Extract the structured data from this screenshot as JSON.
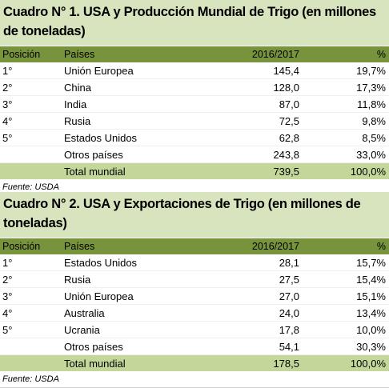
{
  "table1": {
    "title": "Cuadro N° 1. USA y Producción Mundial de Trigo (en millones de toneladas)",
    "headers": [
      "Posición",
      "Países",
      "2016/2017",
      "%"
    ],
    "rows": [
      [
        "1°",
        "Unión Europea",
        "145,4",
        "19,7%"
      ],
      [
        "2°",
        "China",
        "128,0",
        "17,3%"
      ],
      [
        "3°",
        "India",
        "87,0",
        "11,8%"
      ],
      [
        "4°",
        "Rusia",
        "72,5",
        "9,8%"
      ],
      [
        "5°",
        "Estados Unidos",
        "62,8",
        "8,5%"
      ],
      [
        "",
        "Otros países",
        "243,8",
        "33,0%"
      ]
    ],
    "total": [
      "",
      "Total mundial",
      "739,5",
      "100,0%"
    ],
    "source": "Fuente: USDA"
  },
  "table2": {
    "title": "Cuadro N° 2. USA y Exportaciones de Trigo (en millones de toneladas)",
    "headers": [
      "Posición",
      "Países",
      "2016/2017",
      "%"
    ],
    "rows": [
      [
        "1°",
        "Estados Unidos",
        "28,1",
        "15,7%"
      ],
      [
        "2°",
        "Rusia",
        "27,5",
        "15,4%"
      ],
      [
        "3°",
        "Unión Europea",
        "27,0",
        "15,1%"
      ],
      [
        "4°",
        "Australia",
        "24,0",
        "13,4%"
      ],
      [
        "5°",
        "Ucrania",
        "17,8",
        "10,0%"
      ],
      [
        "",
        "Otros países",
        "54,1",
        "30,3%"
      ]
    ],
    "total": [
      "",
      "Total mundial",
      "178,5",
      "100,0%"
    ],
    "source": "Fuente: USDA"
  }
}
